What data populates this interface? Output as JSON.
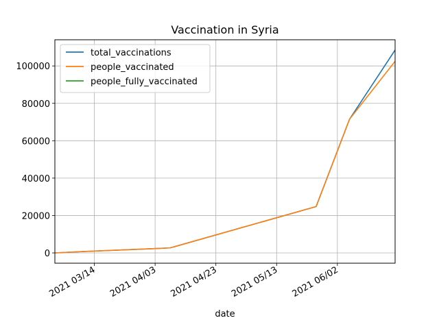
{
  "chart_data": {
    "type": "line",
    "title": "Vaccination in Syria",
    "xlabel": "date",
    "ylabel": "",
    "xlim": [
      "2021-03-01",
      "2021-06-21"
    ],
    "ylim": [
      -5500,
      114000
    ],
    "x_ticks": [
      {
        "date": "2021-03-14",
        "label": "2021 03/14"
      },
      {
        "date": "2021-04-03",
        "label": "2021 04/03"
      },
      {
        "date": "2021-04-23",
        "label": "2021 04/23"
      },
      {
        "date": "2021-05-13",
        "label": "2021 05/13"
      },
      {
        "date": "2021-06-02",
        "label": "2021 06/02"
      }
    ],
    "y_ticks": [
      {
        "value": 0,
        "label": "0"
      },
      {
        "value": 20000,
        "label": "20000"
      },
      {
        "value": 40000,
        "label": "40000"
      },
      {
        "value": 60000,
        "label": "60000"
      },
      {
        "value": 80000,
        "label": "80000"
      },
      {
        "value": 100000,
        "label": "100000"
      }
    ],
    "grid": true,
    "legend_position": "top-left",
    "series": [
      {
        "name": "total_vaccinations",
        "color": "#1f77b4",
        "points": [
          {
            "x": "2021-03-01",
            "y": 0
          },
          {
            "x": "2021-03-14",
            "y": 1000
          },
          {
            "x": "2021-04-03",
            "y": 2300
          },
          {
            "x": "2021-04-08",
            "y": 2700
          },
          {
            "x": "2021-05-26",
            "y": 24800
          },
          {
            "x": "2021-06-06",
            "y": 71500
          },
          {
            "x": "2021-06-21",
            "y": 108500
          }
        ]
      },
      {
        "name": "people_vaccinated",
        "color": "#ff7f0e",
        "points": [
          {
            "x": "2021-03-01",
            "y": 0
          },
          {
            "x": "2021-03-14",
            "y": 1000
          },
          {
            "x": "2021-04-03",
            "y": 2300
          },
          {
            "x": "2021-04-08",
            "y": 2700
          },
          {
            "x": "2021-05-26",
            "y": 24800
          },
          {
            "x": "2021-06-06",
            "y": 71500
          },
          {
            "x": "2021-06-21",
            "y": 102500
          }
        ]
      },
      {
        "name": "people_fully_vaccinated",
        "color": "#2ca02c",
        "points": []
      }
    ]
  }
}
